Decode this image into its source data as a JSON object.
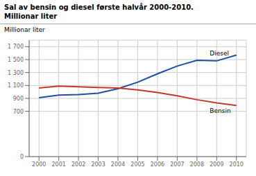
{
  "chart_data": {
    "type": "line",
    "title": "Sal av bensin og diesel første halvår 2000-2010.",
    "subtitle": "Millionar liter",
    "ylabel": "Millionar liter",
    "x": [
      2000,
      2001,
      2002,
      2003,
      2004,
      2005,
      2006,
      2007,
      2008,
      2009,
      2010
    ],
    "series": [
      {
        "name": "Diesel",
        "color": "#1f4e9c",
        "values": [
          910,
          950,
          960,
          980,
          1050,
          1150,
          1280,
          1400,
          1490,
          1480,
          1570
        ]
      },
      {
        "name": "Bensin",
        "color": "#c0392b",
        "values": [
          1060,
          1090,
          1080,
          1070,
          1060,
          1030,
          990,
          940,
          880,
          830,
          790
        ]
      }
    ],
    "xlim": [
      1999.5,
      2010.5
    ],
    "xticks": [
      2000,
      2001,
      2002,
      2003,
      2004,
      2005,
      2006,
      2007,
      2008,
      2009,
      2010
    ],
    "ylim": [
      0,
      1800
    ],
    "yticks": [
      0,
      700,
      900,
      {
        "value": 1100,
        "label": "1 100"
      },
      {
        "value": 1300,
        "label": "1 300"
      },
      {
        "value": 1500,
        "label": "1 500"
      },
      {
        "value": 1700,
        "label": "1 700"
      }
    ],
    "grid": true
  }
}
